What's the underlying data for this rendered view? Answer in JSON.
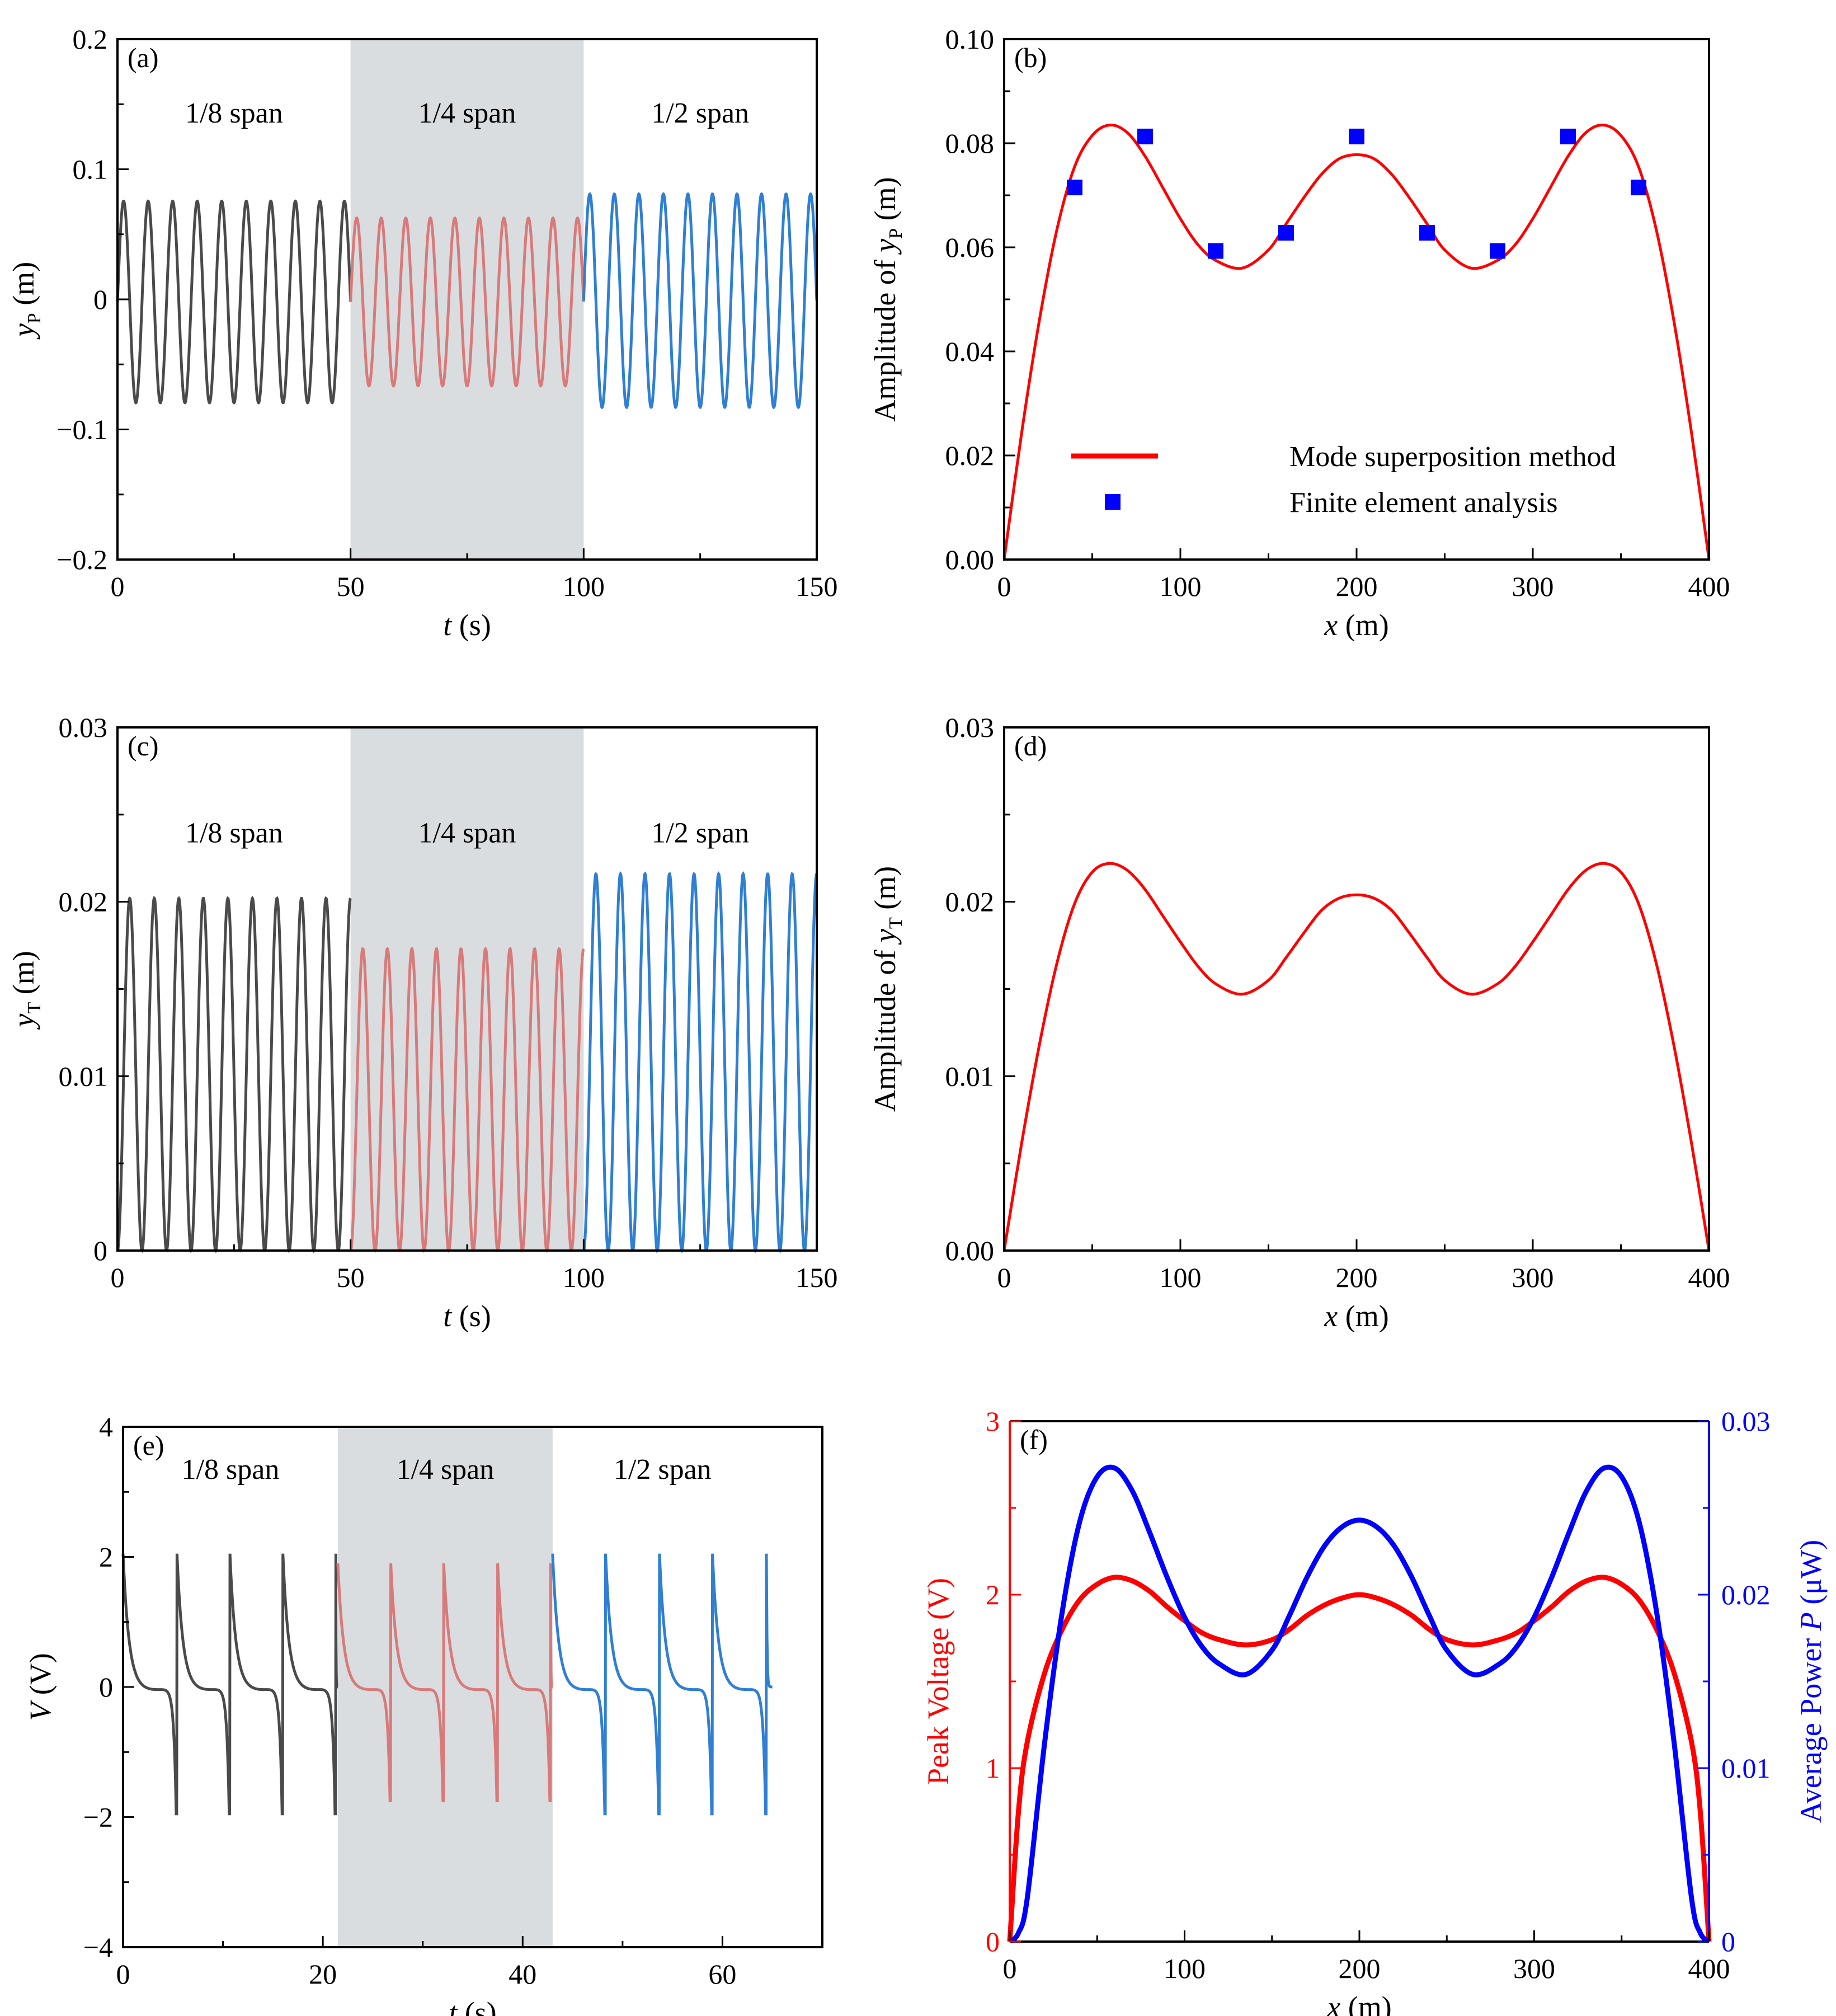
{
  "colors": {
    "gray_trace": "#4a4a4a",
    "pink_trace": "#d97a7a",
    "blue_trace": "#2f7fd3",
    "red": "#ff0000",
    "blue": "#0000ff",
    "shade": "#d9dde0"
  },
  "chart_data": [
    {
      "id": "a",
      "type": "line",
      "panel_label": "(a)",
      "xlabel_var": "t",
      "xlabel_unit": "(s)",
      "ylabel_var": "y",
      "ylabel_sub": "P",
      "ylabel_unit": "(m)",
      "xlim": [
        0,
        150
      ],
      "ylim": [
        -0.2,
        0.2
      ],
      "xticks": [
        0,
        50,
        100,
        150
      ],
      "xtick_labels": [
        "0",
        "50",
        "100",
        "150"
      ],
      "yticks": [
        -0.2,
        -0.1,
        0,
        0.1,
        0.2
      ],
      "ytick_labels": [
        "−0.2",
        "−0.1",
        "0",
        "0.1",
        "0.2"
      ],
      "shaded_region": [
        50,
        100
      ],
      "regions": [
        {
          "label": "1/8 span",
          "color_key": "gray_trace",
          "t_start": 0,
          "t_end": 50,
          "amplitude": 0.0775,
          "offset": -0.002,
          "cycles": 9.5
        },
        {
          "label": "1/4 span",
          "color_key": "pink_trace",
          "t_start": 50,
          "t_end": 100,
          "amplitude": 0.0645,
          "offset": -0.002,
          "cycles": 9.5
        },
        {
          "label": "1/2 span",
          "color_key": "blue_trace",
          "t_start": 100,
          "t_end": 150,
          "amplitude": 0.082,
          "offset": -0.001,
          "cycles": 9.5
        }
      ]
    },
    {
      "id": "b",
      "type": "line+scatter",
      "panel_label": "(b)",
      "xlabel_var": "x",
      "xlabel_unit": "(m)",
      "ylabel_prefix": "Amplitude of ",
      "ylabel_var": "y",
      "ylabel_sub": "P",
      "ylabel_unit": "(m)",
      "xlim": [
        0,
        400
      ],
      "ylim": [
        0,
        0.1
      ],
      "xticks": [
        0,
        100,
        200,
        300,
        400
      ],
      "xtick_labels": [
        "0",
        "100",
        "200",
        "300",
        "400"
      ],
      "yticks": [
        0,
        0.02,
        0.04,
        0.06,
        0.08,
        0.1
      ],
      "ytick_labels": [
        "0.00",
        "0.02",
        "0.04",
        "0.06",
        "0.08",
        "0.10"
      ],
      "series": [
        {
          "name": "Mode superposition method",
          "kind": "line",
          "color_key": "red",
          "x": [
            0,
            10,
            20,
            30,
            40,
            50,
            60,
            70,
            80,
            90,
            100,
            110,
            120,
            135,
            150,
            160,
            170,
            180,
            190,
            200,
            210,
            220,
            230,
            240,
            250,
            265,
            280,
            290,
            300,
            310,
            320,
            330,
            340,
            350,
            360,
            370,
            380,
            390,
            400
          ],
          "y": [
            0,
            0.0245,
            0.046,
            0.0635,
            0.0755,
            0.0815,
            0.0835,
            0.082,
            0.0775,
            0.0715,
            0.0655,
            0.0605,
            0.0575,
            0.056,
            0.0595,
            0.0645,
            0.0695,
            0.074,
            0.077,
            0.0778,
            0.077,
            0.074,
            0.0695,
            0.0645,
            0.0595,
            0.056,
            0.0575,
            0.0605,
            0.0655,
            0.0715,
            0.0775,
            0.082,
            0.0835,
            0.0815,
            0.0755,
            0.0635,
            0.046,
            0.0245,
            0
          ]
        },
        {
          "name": "Finite element analysis",
          "kind": "scatter",
          "color_key": "blue",
          "x": [
            40,
            80,
            120,
            160,
            200,
            240,
            280,
            320,
            360
          ],
          "y": [
            0.0715,
            0.0813,
            0.0593,
            0.0628,
            0.0813,
            0.0628,
            0.0593,
            0.0813,
            0.0715
          ]
        }
      ],
      "legend": [
        {
          "label": "Mode superposition method",
          "kind": "line",
          "color_key": "red"
        },
        {
          "label": "Finite element analysis",
          "kind": "scatter",
          "color_key": "blue"
        }
      ]
    },
    {
      "id": "c",
      "type": "line",
      "panel_label": "(c)",
      "xlabel_var": "t",
      "xlabel_unit": "(s)",
      "ylabel_var": "y",
      "ylabel_sub": "T",
      "ylabel_unit": "(m)",
      "xlim": [
        0,
        150
      ],
      "ylim": [
        0,
        0.03
      ],
      "xticks": [
        0,
        50,
        100,
        150
      ],
      "xtick_labels": [
        "0",
        "50",
        "100",
        "150"
      ],
      "yticks": [
        0,
        0.01,
        0.02,
        0.03
      ],
      "ytick_labels": [
        "0",
        "0.01",
        "0.02",
        "0.03"
      ],
      "shaded_region": [
        50,
        100
      ],
      "regions": [
        {
          "label": "1/8 span",
          "color_key": "gray_trace",
          "t_start": 0,
          "t_end": 50,
          "amplitude": 0.0101,
          "offset": 0.0101,
          "cycles": 9.5
        },
        {
          "label": "1/4 span",
          "color_key": "pink_trace",
          "t_start": 50,
          "t_end": 100,
          "amplitude": 0.00865,
          "offset": 0.00865,
          "cycles": 9.5
        },
        {
          "label": "1/2 span",
          "color_key": "blue_trace",
          "t_start": 100,
          "t_end": 150,
          "amplitude": 0.0108,
          "offset": 0.0108,
          "cycles": 9.5
        }
      ]
    },
    {
      "id": "d",
      "type": "line",
      "panel_label": "(d)",
      "xlabel_var": "x",
      "xlabel_unit": "(m)",
      "ylabel_prefix": "Amplitude of ",
      "ylabel_var": "y",
      "ylabel_sub": "T",
      "ylabel_unit": "(m)",
      "xlim": [
        0,
        400
      ],
      "ylim": [
        0,
        0.03
      ],
      "xticks": [
        0,
        100,
        200,
        300,
        400
      ],
      "xtick_labels": [
        "0",
        "100",
        "200",
        "300",
        "400"
      ],
      "yticks": [
        0,
        0.01,
        0.02,
        0.03
      ],
      "ytick_labels": [
        "0.00",
        "0.01",
        "0.02",
        "0.03"
      ],
      "series": [
        {
          "name": "Amplitude of yT",
          "kind": "line",
          "color_key": "red",
          "x": [
            0,
            10,
            20,
            30,
            40,
            50,
            60,
            70,
            80,
            90,
            100,
            110,
            120,
            135,
            150,
            160,
            170,
            180,
            190,
            200,
            210,
            220,
            230,
            240,
            250,
            265,
            280,
            290,
            300,
            310,
            320,
            330,
            340,
            350,
            360,
            370,
            380,
            390,
            400
          ],
          "y": [
            0,
            0.0062,
            0.0118,
            0.0165,
            0.0199,
            0.0217,
            0.0222,
            0.0218,
            0.0207,
            0.0192,
            0.0177,
            0.0163,
            0.0153,
            0.0147,
            0.0155,
            0.0168,
            0.0182,
            0.0195,
            0.0202,
            0.0204,
            0.0202,
            0.0195,
            0.0182,
            0.0168,
            0.0155,
            0.0147,
            0.0153,
            0.0163,
            0.0177,
            0.0192,
            0.0207,
            0.0218,
            0.0222,
            0.0217,
            0.0199,
            0.0165,
            0.0118,
            0.0062,
            0
          ]
        }
      ]
    },
    {
      "id": "e",
      "type": "line",
      "panel_label": "(e)",
      "xlabel_var": "t",
      "xlabel_unit": "(s)",
      "ylabel_var": "V",
      "ylabel_sub": "",
      "ylabel_unit": "(V)",
      "xlim": [
        0,
        70
      ],
      "ylim": [
        -4,
        4
      ],
      "xticks": [
        0,
        20,
        40,
        60
      ],
      "xtick_labels": [
        "0",
        "20",
        "40",
        "60"
      ],
      "yticks": [
        -4,
        -2,
        0,
        2,
        4
      ],
      "ytick_labels": [
        "−4",
        "−2",
        "0",
        "2",
        "4"
      ],
      "shaded_region": [
        21.5,
        43
      ],
      "regions": [
        {
          "label": "1/8 span",
          "color_key": "gray_trace",
          "t_start": 0,
          "t_end": 21.5,
          "pulse_times": [
            0,
            5.4,
            10.7,
            16.0,
            21.3
          ],
          "peak": 2.05,
          "trough": -1.95
        },
        {
          "label": "1/4 span",
          "color_key": "pink_trace",
          "t_start": 21.5,
          "t_end": 43,
          "pulse_times": [
            21.5,
            26.8,
            32.1,
            37.5,
            42.8
          ],
          "peak": 1.9,
          "trough": -1.75
        },
        {
          "label": "1/2 span",
          "color_key": "blue_trace",
          "t_start": 43,
          "t_end": 65,
          "pulse_times": [
            43.0,
            48.3,
            53.7,
            59.0,
            64.4
          ],
          "peak": 2.05,
          "trough": -1.95
        }
      ]
    },
    {
      "id": "f",
      "type": "line",
      "panel_label": "(f)",
      "xlabel_var": "x",
      "xlabel_unit": "(m)",
      "ylabel_left": "Peak Voltage (V)",
      "ylabel_right_prefix": "Average Power ",
      "ylabel_right_var": "P",
      "ylabel_right_unit": " (μW)",
      "xlim": [
        0,
        400
      ],
      "ylim_left": [
        0,
        3
      ],
      "ylim_right": [
        0,
        0.03
      ],
      "xticks": [
        0,
        100,
        200,
        300,
        400
      ],
      "xtick_labels": [
        "0",
        "100",
        "200",
        "300",
        "400"
      ],
      "yticks_left": [
        0,
        1,
        2,
        3
      ],
      "ytick_labels_left": [
        "0",
        "1",
        "2",
        "3"
      ],
      "yticks_right": [
        0,
        0.01,
        0.02,
        0.03
      ],
      "ytick_labels_right": [
        "0",
        "0.01",
        "0.02",
        "0.03"
      ],
      "series": [
        {
          "name": "Peak Voltage",
          "axis": "left",
          "color_key": "red",
          "x": [
            0,
            5,
            10,
            20,
            30,
            40,
            50,
            60,
            70,
            80,
            90,
            100,
            110,
            120,
            135,
            150,
            160,
            170,
            180,
            190,
            200,
            210,
            220,
            230,
            240,
            250,
            265,
            280,
            290,
            300,
            310,
            320,
            330,
            340,
            350,
            360,
            370,
            380,
            390,
            395,
            400
          ],
          "y": [
            0,
            0.75,
            1.15,
            1.55,
            1.8,
            1.97,
            2.06,
            2.1,
            2.08,
            2.02,
            1.93,
            1.85,
            1.78,
            1.74,
            1.71,
            1.74,
            1.8,
            1.88,
            1.94,
            1.98,
            2.0,
            1.98,
            1.94,
            1.88,
            1.8,
            1.74,
            1.71,
            1.74,
            1.78,
            1.85,
            1.93,
            2.02,
            2.08,
            2.1,
            2.06,
            1.97,
            1.8,
            1.55,
            1.15,
            0.75,
            0
          ]
        },
        {
          "name": "Average Power",
          "axis": "right",
          "color_key": "blue",
          "x": [
            0,
            5,
            10,
            20,
            30,
            40,
            50,
            60,
            70,
            80,
            90,
            100,
            110,
            120,
            135,
            150,
            160,
            170,
            180,
            190,
            200,
            210,
            220,
            230,
            240,
            250,
            265,
            280,
            290,
            300,
            310,
            320,
            330,
            340,
            350,
            360,
            370,
            380,
            390,
            395,
            400
          ],
          "y": [
            0,
            0.0005,
            0.0025,
            0.0115,
            0.019,
            0.0242,
            0.0268,
            0.0273,
            0.026,
            0.0236,
            0.021,
            0.0187,
            0.017,
            0.016,
            0.0154,
            0.0168,
            0.0188,
            0.021,
            0.0228,
            0.0239,
            0.0243,
            0.0239,
            0.0228,
            0.021,
            0.0188,
            0.0168,
            0.0154,
            0.016,
            0.017,
            0.0187,
            0.021,
            0.0236,
            0.026,
            0.0273,
            0.0268,
            0.0242,
            0.019,
            0.0115,
            0.0025,
            0.0005,
            0
          ]
        }
      ]
    }
  ]
}
